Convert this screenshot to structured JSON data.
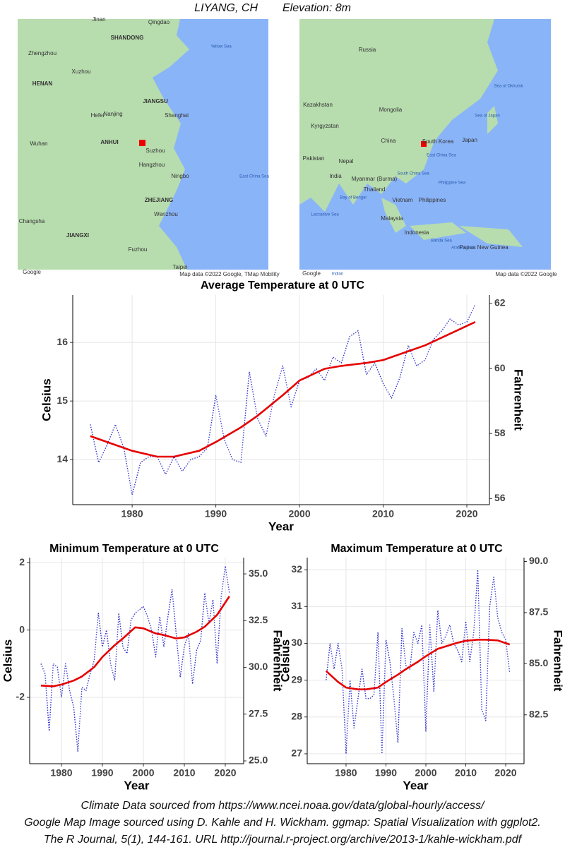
{
  "header": {
    "location": "LIYANG, CH",
    "elevation": "Elevation: 8m"
  },
  "maps": [
    {
      "labels": [
        "Jinan",
        "Qingdao",
        "SHANDONG",
        "Zhengzhou",
        "Yellow Sea",
        "HENAN",
        "Xuzhou",
        "JIANGSU",
        "Nanjing",
        "Hefei",
        "Shanghai",
        "ANHUI",
        "Suzhou",
        "Wuhan",
        "Hangzhou",
        "Ningbo",
        "East China Sea",
        "ZHEJIANG",
        "Changsha",
        "JIANGXI",
        "Wenzhou",
        "Fuzhou",
        "Taipei",
        "Google",
        "Map data ©2022 Google, TMap Mobility"
      ]
    },
    {
      "labels": [
        "Russia",
        "Sea of Okhotsk",
        "Kazakhstan",
        "Mongolia",
        "Kyrgyzstan",
        "Sea of Japan",
        "China",
        "South Korea",
        "Japan",
        "Pakistan",
        "Nepal",
        "East China Sea",
        "India",
        "Myanmar (Burma)",
        "Philippine Sea",
        "Thailand",
        "South China Sea",
        "Bay of Bengal",
        "Vietnam",
        "Philippines",
        "Laccadive Sea",
        "Malaysia",
        "Indonesia",
        "Banda Sea",
        "Papua New Guinea",
        "Arafura Sea",
        "Google",
        "Indian",
        "Map data ©2022 Google"
      ]
    }
  ],
  "chart_data": [
    {
      "type": "line",
      "title": "Average Temperature at 0 UTC",
      "x_label": "Year",
      "y_label": "Celsius",
      "y2_label": "Fahrenheit",
      "xlim": [
        1972.9,
        2022.7
      ],
      "xticks": [
        1980,
        1990,
        2000,
        2010,
        2020
      ],
      "ylim": [
        13.23,
        16.81
      ],
      "yticks": [
        14,
        15,
        16
      ],
      "y2lim": [
        55.81,
        62.26
      ],
      "y2ticks": [
        56,
        58,
        60,
        62
      ],
      "grid": true,
      "series": [
        {
          "color": "#3333cc",
          "style": "dotted",
          "x": [
            1975,
            1976,
            1977,
            1978,
            1979,
            1980,
            1981,
            1982,
            1983,
            1984,
            1985,
            1986,
            1987,
            1988,
            1989,
            1990,
            1991,
            1992,
            1993,
            1994,
            1995,
            1996,
            1997,
            1998,
            1999,
            2000,
            2001,
            2002,
            2003,
            2004,
            2005,
            2006,
            2007,
            2008,
            2009,
            2010,
            2011,
            2012,
            2013,
            2014,
            2015,
            2016,
            2017,
            2018,
            2019,
            2020,
            2021
          ],
          "values": [
            14.6,
            13.95,
            14.25,
            14.6,
            14.2,
            13.4,
            13.95,
            14.05,
            14.05,
            13.75,
            14.05,
            13.8,
            14.0,
            14.05,
            14.2,
            15.1,
            14.35,
            14.0,
            13.95,
            15.5,
            14.7,
            14.4,
            15.1,
            15.6,
            14.9,
            15.35,
            15.4,
            15.55,
            15.35,
            15.75,
            15.65,
            16.1,
            16.2,
            15.45,
            15.65,
            15.3,
            15.05,
            15.4,
            15.95,
            15.6,
            15.7,
            16.05,
            16.2,
            16.4,
            16.3,
            16.35,
            16.65
          ]
        },
        {
          "color": "#e60000",
          "style": "solid",
          "x": [
            1975,
            1978,
            1980,
            1983,
            1985,
            1988,
            1990,
            1993,
            1995,
            1998,
            2000,
            2003,
            2005,
            2008,
            2010,
            2013,
            2015,
            2018,
            2021
          ],
          "values": [
            14.4,
            14.25,
            14.15,
            14.05,
            14.05,
            14.15,
            14.3,
            14.55,
            14.75,
            15.1,
            15.35,
            15.55,
            15.6,
            15.65,
            15.7,
            15.85,
            15.95,
            16.15,
            16.35
          ]
        }
      ]
    },
    {
      "type": "line",
      "title": "Minimum Temperature at 0 UTC",
      "x_label": "Year",
      "y_label": "Celsius",
      "y2_label": "Fahrenheit",
      "xlim": [
        1972.24,
        2024.48
      ],
      "xticks": [
        1980,
        1990,
        2000,
        2010,
        2020
      ],
      "ylim": [
        -3.97,
        2.15
      ],
      "yticks": [
        -2,
        0,
        2
      ],
      "y2lim": [
        24.85,
        35.87
      ],
      "y2ticks": [
        {
          "value": 25,
          "label": "25.0"
        },
        27.5,
        {
          "value": 30,
          "label": "30.0"
        },
        32.5,
        {
          "value": 35,
          "label": "35.0"
        }
      ],
      "grid": true,
      "series": [
        {
          "color": "#3333cc",
          "style": "dotted",
          "x": [
            1975,
            1976,
            1977,
            1978,
            1979,
            1980,
            1981,
            1982,
            1983,
            1984,
            1985,
            1986,
            1987,
            1988,
            1989,
            1990,
            1991,
            1992,
            1993,
            1994,
            1995,
            1996,
            1997,
            1998,
            1999,
            2000,
            2001,
            2002,
            2003,
            2004,
            2005,
            2006,
            2007,
            2008,
            2009,
            2010,
            2011,
            2012,
            2013,
            2014,
            2015,
            2016,
            2017,
            2018,
            2019,
            2020,
            2021
          ],
          "values": [
            -1.0,
            -1.3,
            -3.0,
            -1.0,
            -1.1,
            -2.0,
            -1.0,
            -1.8,
            -2.3,
            -3.6,
            -1.7,
            -1.8,
            -1.3,
            -0.9,
            0.5,
            -0.5,
            0.0,
            -1.0,
            -1.5,
            0.5,
            -0.5,
            -0.7,
            0.3,
            0.5,
            0.6,
            0.7,
            0.4,
            0.0,
            -0.8,
            0.4,
            -0.5,
            0.4,
            1.2,
            -0.1,
            -1.4,
            -0.5,
            -0.1,
            -1.6,
            -0.6,
            -0.3,
            1.1,
            0.2,
            0.9,
            -1.0,
            1.0,
            1.9,
            1.1
          ]
        },
        {
          "color": "#e60000",
          "style": "solid",
          "x": [
            1975,
            1978,
            1980,
            1983,
            1985,
            1988,
            1990,
            1993,
            1995,
            1998,
            2000,
            2003,
            2005,
            2008,
            2010,
            2013,
            2015,
            2018,
            2021
          ],
          "values": [
            -1.65,
            -1.67,
            -1.62,
            -1.5,
            -1.38,
            -1.1,
            -0.8,
            -0.45,
            -0.25,
            0.08,
            0.05,
            -0.1,
            -0.15,
            -0.25,
            -0.22,
            -0.05,
            0.1,
            0.45,
            1.0
          ]
        }
      ]
    },
    {
      "type": "line",
      "title": "Maximum Temperature at 0 UTC",
      "x_label": "Year",
      "y_label": "Celsius",
      "y2_label": "Fahrenheit",
      "xlim": [
        1970.27,
        2024.6
      ],
      "xticks": [
        1980,
        1990,
        2000,
        2010,
        2020
      ],
      "ylim": [
        26.73,
        32.33
      ],
      "yticks": [
        27,
        28,
        29,
        30,
        31,
        32
      ],
      "y2lim": [
        80.11,
        90.19
      ],
      "y2ticks": [
        82.5,
        {
          "value": 85,
          "label": "85.0"
        },
        87.5,
        {
          "value": 90,
          "label": "90.0"
        }
      ],
      "grid": true,
      "series": [
        {
          "color": "#3333cc",
          "style": "dotted",
          "x": [
            1975,
            1976,
            1977,
            1978,
            1979,
            1980,
            1981,
            1982,
            1983,
            1984,
            1985,
            1986,
            1987,
            1988,
            1989,
            1990,
            1991,
            1992,
            1993,
            1994,
            1995,
            1996,
            1997,
            1998,
            1999,
            2000,
            2001,
            2002,
            2003,
            2004,
            2005,
            2006,
            2007,
            2008,
            2009,
            2010,
            2011,
            2012,
            2013,
            2014,
            2015,
            2016,
            2017,
            2018,
            2019,
            2020,
            2021
          ],
          "values": [
            29.0,
            30.0,
            29.3,
            30.0,
            29.3,
            27.0,
            29.0,
            27.7,
            28.5,
            29.3,
            28.5,
            28.5,
            28.6,
            30.3,
            27.0,
            30.1,
            29.5,
            28.5,
            27.3,
            30.4,
            29.4,
            29.3,
            30.3,
            30.0,
            30.5,
            27.6,
            30.5,
            28.7,
            30.9,
            30.0,
            30.2,
            30.5,
            30.0,
            29.8,
            29.5,
            30.6,
            29.5,
            30.3,
            32.0,
            28.2,
            27.9,
            31.0,
            31.8,
            30.7,
            30.3,
            30.1,
            29.2
          ]
        },
        {
          "color": "#e60000",
          "style": "solid",
          "x": [
            1975,
            1978,
            1980,
            1983,
            1985,
            1988,
            1990,
            1993,
            1995,
            1998,
            2000,
            2003,
            2005,
            2008,
            2010,
            2013,
            2015,
            2018,
            2021
          ],
          "values": [
            29.25,
            28.95,
            28.8,
            28.75,
            28.75,
            28.8,
            28.95,
            29.15,
            29.3,
            29.5,
            29.65,
            29.85,
            29.92,
            30.02,
            30.07,
            30.1,
            30.1,
            30.08,
            29.97
          ]
        }
      ]
    }
  ],
  "footer": [
    "Climate Data sourced from https://www.ncei.noaa.gov/data/global-hourly/access/",
    "Google Map Image sourced using D. Kahle and H. Wickham. ggmap: Spatial Visualization with ggplot2.",
    "The R Journal, 5(1), 144-161. URL http://journal.r-project.org/archive/2013-1/kahle-wickham.pdf"
  ]
}
